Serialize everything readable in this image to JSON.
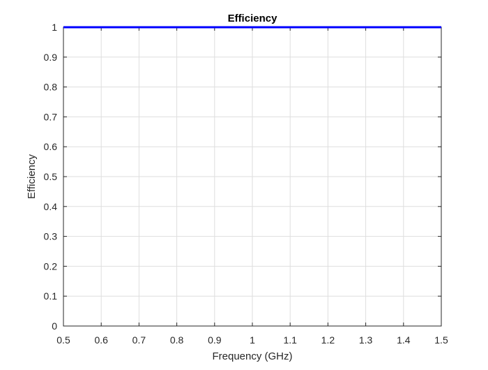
{
  "chart_data": {
    "type": "line",
    "title": "Efficiency",
    "xlabel": "Frequency (GHz)",
    "ylabel": "Efficiency",
    "xlim": [
      0.5,
      1.5
    ],
    "ylim": [
      0,
      1
    ],
    "xticks": [
      0.5,
      0.6,
      0.7,
      0.8,
      0.9,
      1.0,
      1.1,
      1.2,
      1.3,
      1.4,
      1.5
    ],
    "yticks": [
      0,
      0.1,
      0.2,
      0.3,
      0.4,
      0.5,
      0.6,
      0.7,
      0.8,
      0.9,
      1.0
    ],
    "xtick_labels": [
      "0.5",
      "0.6",
      "0.7",
      "0.8",
      "0.9",
      "1",
      "1.1",
      "1.2",
      "1.3",
      "1.4",
      "1.5"
    ],
    "ytick_labels": [
      "0",
      "0.1",
      "0.2",
      "0.3",
      "0.4",
      "0.5",
      "0.6",
      "0.7",
      "0.8",
      "0.9",
      "1"
    ],
    "grid": true,
    "series": [
      {
        "color": "#0000ff",
        "x": [
          0.5,
          0.6,
          0.7,
          0.8,
          0.9,
          1.0,
          1.1,
          1.2,
          1.3,
          1.4,
          1.5
        ],
        "y": [
          1,
          1,
          1,
          1,
          1,
          1,
          1,
          1,
          1,
          1,
          1
        ]
      }
    ]
  }
}
